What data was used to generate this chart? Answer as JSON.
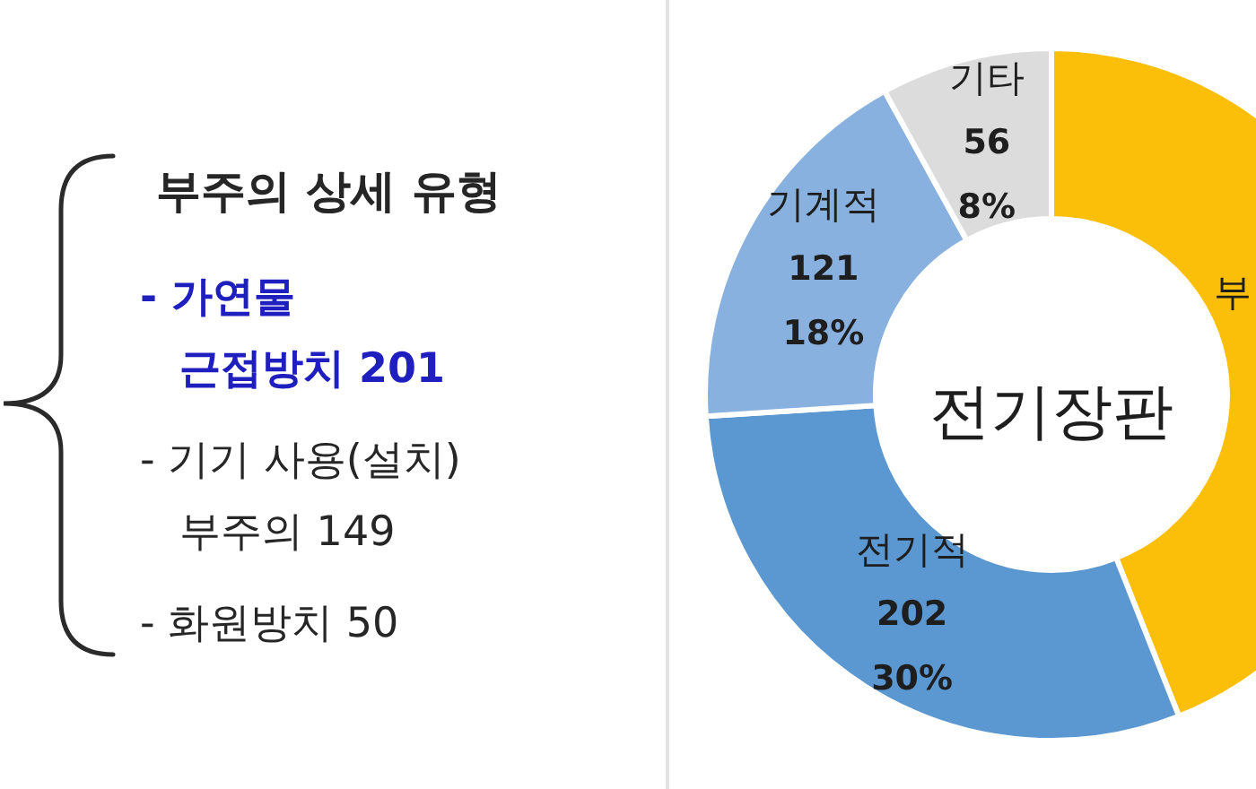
{
  "chart_data": {
    "type": "donut",
    "title": "전기장판",
    "categories": [
      "부",
      "전기적",
      "기계적",
      "기타"
    ],
    "values": [
      44,
      30,
      18,
      8
    ],
    "colors": [
      "#fbbf0a",
      "#5b97d1",
      "#88b1e0",
      "#dcdcdc"
    ],
    "value_labels": [
      null,
      "202\n30%",
      "121\n18%",
      "56\n8%"
    ],
    "annotations": [
      "부주의 상세 유형",
      "- 가연물\n근접방치 201",
      "- 기기 사용(설치)\n부주의 149",
      "- 화원방치 50"
    ]
  }
}
